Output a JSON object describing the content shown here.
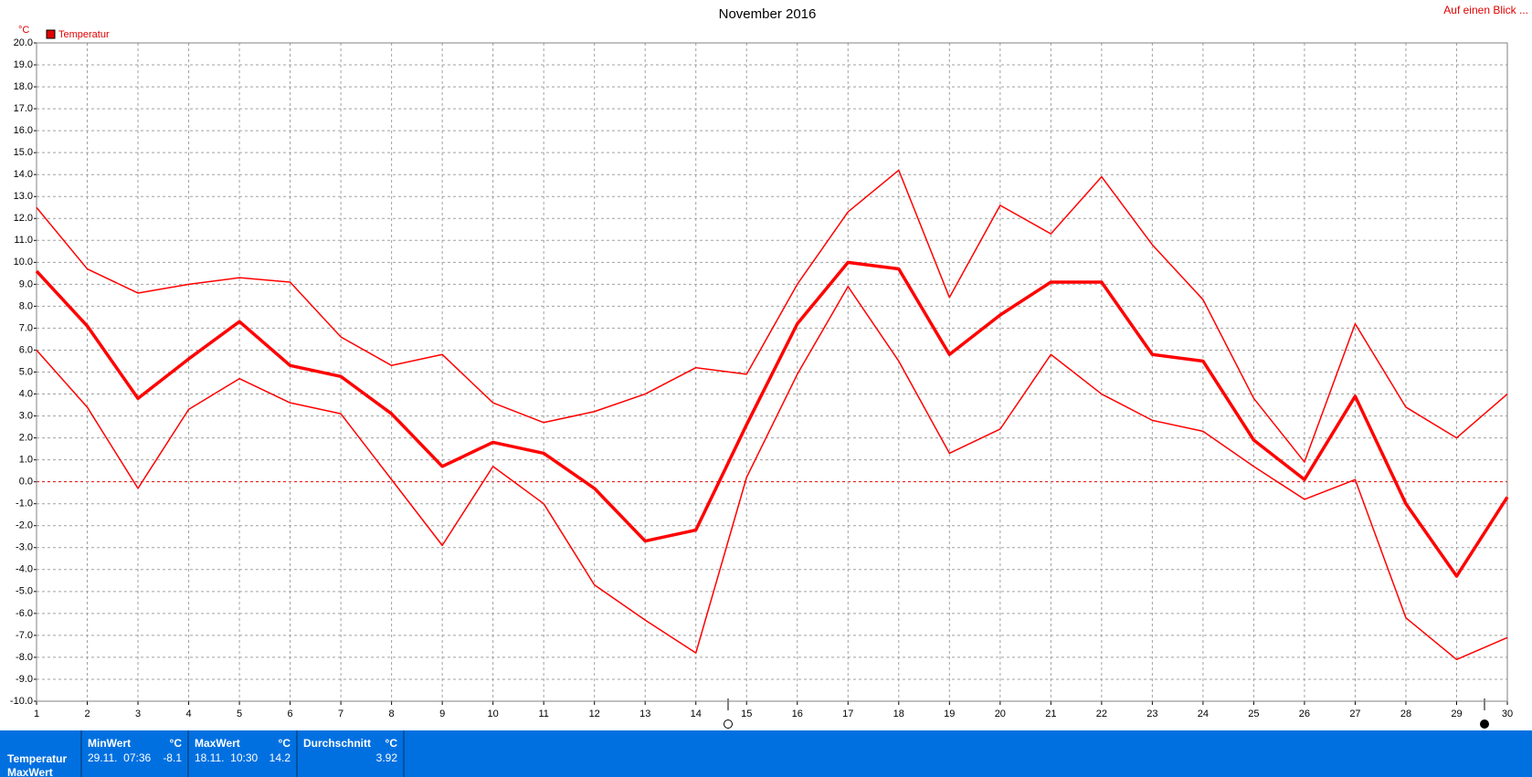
{
  "chart_data": {
    "type": "line",
    "title": "November 2016",
    "unit": "°C",
    "legend": "Temperatur",
    "legend_color": "#e00000",
    "link": "Auf einen Blick ...",
    "x": [
      1,
      2,
      3,
      4,
      5,
      6,
      7,
      8,
      9,
      10,
      11,
      12,
      13,
      14,
      15,
      16,
      17,
      18,
      19,
      20,
      21,
      22,
      23,
      24,
      25,
      26,
      27,
      28,
      29,
      30
    ],
    "xlim": [
      1,
      30
    ],
    "xticks": [
      1,
      2,
      3,
      4,
      5,
      6,
      7,
      8,
      9,
      10,
      11,
      12,
      13,
      14,
      15,
      16,
      17,
      18,
      19,
      20,
      21,
      22,
      23,
      24,
      25,
      26,
      27,
      28,
      29,
      30
    ],
    "series": [
      {
        "color": "#ff0000",
        "line_width": 1.5,
        "values": [
          12.5,
          9.7,
          8.6,
          9.0,
          9.3,
          9.1,
          6.6,
          5.3,
          5.8,
          3.6,
          2.7,
          3.2,
          4.0,
          5.2,
          4.9,
          9.0,
          12.3,
          14.2,
          8.4,
          12.6,
          11.3,
          13.9,
          10.8,
          8.3,
          3.8,
          0.9,
          7.2,
          3.4,
          2.0,
          4.0
        ]
      },
      {
        "color": "#ff0000",
        "line_width": 3.5,
        "values": [
          9.6,
          7.1,
          3.8,
          5.6,
          7.3,
          5.3,
          4.8,
          3.1,
          0.7,
          1.8,
          1.3,
          -0.3,
          -2.7,
          -2.2,
          2.6,
          7.2,
          10.0,
          9.7,
          5.8,
          7.6,
          9.1,
          9.1,
          5.8,
          5.5,
          1.9,
          0.1,
          3.9,
          -1.0,
          -4.3,
          -0.7
        ]
      },
      {
        "color": "#ff0000",
        "line_width": 1.5,
        "values": [
          6.0,
          3.4,
          -0.3,
          3.3,
          4.7,
          3.6,
          3.1,
          0.1,
          -2.9,
          0.7,
          -1.0,
          -4.7,
          -6.3,
          -7.8,
          0.2,
          4.9,
          8.9,
          5.5,
          1.3,
          2.4,
          5.8,
          4.0,
          2.8,
          2.3,
          0.7,
          -0.8,
          0.1,
          -6.2,
          -8.1,
          -7.1
        ]
      }
    ],
    "ylim": [
      -10,
      20
    ],
    "yticks": [
      {
        "value": -10,
        "label": "-10.0"
      },
      {
        "value": -9,
        "label": "-9.0"
      },
      {
        "value": -8,
        "label": "-8.0"
      },
      {
        "value": -7,
        "label": "-7.0"
      },
      {
        "value": -6,
        "label": "-6.0"
      },
      {
        "value": -5,
        "label": "-5.0"
      },
      {
        "value": -4,
        "label": "-4.0"
      },
      {
        "value": -3,
        "label": "-3.0"
      },
      {
        "value": -2,
        "label": "-2.0"
      },
      {
        "value": -1,
        "label": "-1.0"
      },
      {
        "value": 0,
        "label": "0.0"
      },
      {
        "value": 1,
        "label": "1.0"
      },
      {
        "value": 2,
        "label": "2.0"
      },
      {
        "value": 3,
        "label": "3.0"
      },
      {
        "value": 4,
        "label": "4.0"
      },
      {
        "value": 5,
        "label": "5.0"
      },
      {
        "value": 6,
        "label": "6.0"
      },
      {
        "value": 7,
        "label": "7.0"
      },
      {
        "value": 8,
        "label": "8.0"
      },
      {
        "value": 9,
        "label": "9.0"
      },
      {
        "value": 10,
        "label": "10.0"
      },
      {
        "value": 11,
        "label": "11.0"
      },
      {
        "value": 12,
        "label": "12.0"
      },
      {
        "value": 13,
        "label": "13.0"
      },
      {
        "value": 14,
        "label": "14.0"
      },
      {
        "value": 15,
        "label": "15.0"
      },
      {
        "value": 16,
        "label": "16.0"
      },
      {
        "value": 17,
        "label": "17.0"
      },
      {
        "value": 18,
        "label": "18.0"
      },
      {
        "value": 19,
        "label": "19.0"
      },
      {
        "value": 20,
        "label": "20.0"
      }
    ],
    "grid": true,
    "zero_line": true,
    "zero_line_color": "#e00000"
  },
  "panel": {
    "row_labels": [
      "Temperatur",
      "MaxWert"
    ],
    "columns": [
      {
        "header": "MinWert",
        "unit": "°C",
        "date": "29.11.  07:36",
        "value": -8.1
      },
      {
        "header": "MaxWert",
        "unit": "°C",
        "date": "18.11.  10:30",
        "value": 14.2
      },
      {
        "header": "Durchschnitt",
        "unit": "°C",
        "value": 3.92
      }
    ]
  }
}
